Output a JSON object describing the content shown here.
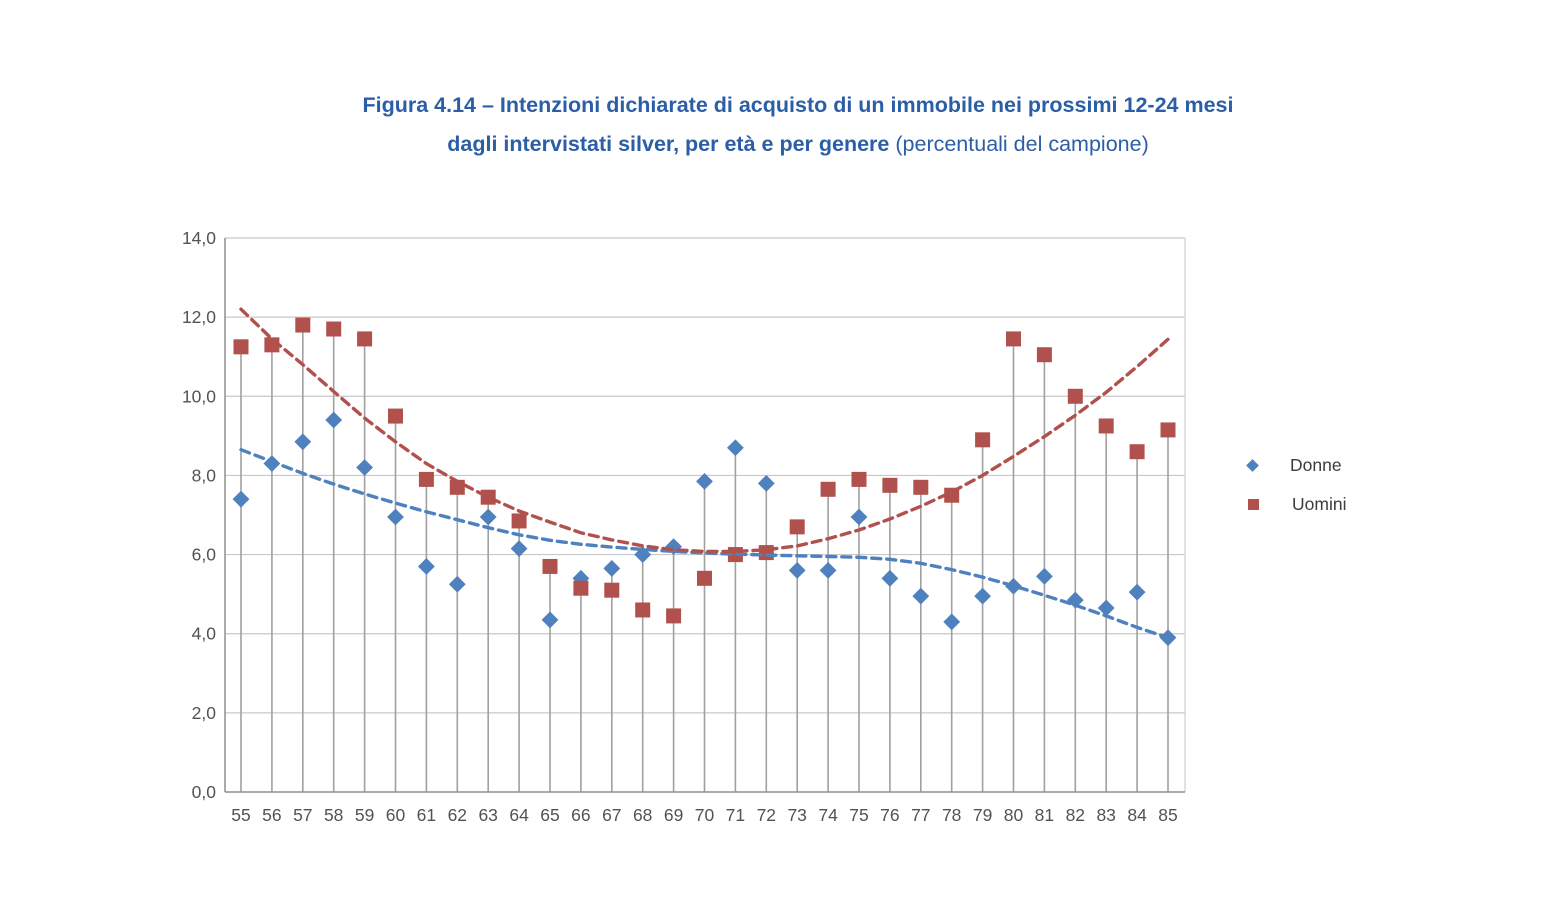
{
  "title": {
    "line1": "Figura 4.14 – Intenzioni dichiarate di acquisto di un immobile nei prossimi 12-24 mesi",
    "line2_bold": "dagli intervistati silver, per età e per genere",
    "line2_normal": " (percentuali del campione)",
    "color": "#2B5EA7"
  },
  "legend": {
    "position": "right",
    "items": [
      {
        "label": "Donne",
        "marker": "diamond",
        "color": "#4E81BD"
      },
      {
        "label": "Uomini",
        "marker": "square",
        "color": "#B1514D"
      }
    ]
  },
  "axes": {
    "y_ticks": [
      0,
      2,
      4,
      6,
      8,
      10,
      12,
      14
    ],
    "y_tick_labels": [
      "0,0",
      "2,0",
      "4,0",
      "6,0",
      "8,0",
      "10,0",
      "12,0",
      "14,0"
    ],
    "x_labels": [
      "55",
      "56",
      "57",
      "58",
      "59",
      "60",
      "61",
      "62",
      "63",
      "64",
      "65",
      "66",
      "67",
      "68",
      "69",
      "70",
      "71",
      "72",
      "73",
      "74",
      "75",
      "76",
      "77",
      "78",
      "79",
      "80",
      "81",
      "82",
      "83",
      "84",
      "85"
    ]
  },
  "chart_data": {
    "type": "scatter",
    "x": [
      55,
      56,
      57,
      58,
      59,
      60,
      61,
      62,
      63,
      64,
      65,
      66,
      67,
      68,
      69,
      70,
      71,
      72,
      73,
      74,
      75,
      76,
      77,
      78,
      79,
      80,
      81,
      82,
      83,
      84,
      85
    ],
    "xlabel": "",
    "ylabel": "",
    "ylim": [
      0,
      14
    ],
    "ytick_step": 2,
    "grid": "horizontal",
    "drop_lines": true,
    "legend_position": "right",
    "series": [
      {
        "name": "Donne",
        "marker": "diamond",
        "color": "#4E81BD",
        "values": [
          7.4,
          8.3,
          8.85,
          9.4,
          8.2,
          6.95,
          5.7,
          5.25,
          6.95,
          6.15,
          4.35,
          5.4,
          5.65,
          6.0,
          6.2,
          7.85,
          8.7,
          7.8,
          5.6,
          5.6,
          6.95,
          5.4,
          4.95,
          4.3,
          4.95,
          5.2,
          5.45,
          4.85,
          4.65,
          5.05,
          3.9
        ],
        "trendline": [
          8.65,
          8.35,
          8.05,
          7.78,
          7.53,
          7.3,
          7.08,
          6.88,
          6.68,
          6.5,
          6.36,
          6.26,
          6.19,
          6.13,
          6.08,
          6.04,
          6.01,
          5.99,
          5.97,
          5.95,
          5.93,
          5.88,
          5.78,
          5.62,
          5.43,
          5.21,
          4.97,
          4.72,
          4.45,
          4.16,
          3.9
        ]
      },
      {
        "name": "Uomini",
        "marker": "square",
        "color": "#B1514D",
        "values": [
          11.25,
          11.3,
          11.8,
          11.7,
          11.45,
          9.5,
          7.9,
          7.7,
          7.45,
          6.85,
          5.7,
          5.15,
          5.1,
          4.6,
          4.45,
          5.4,
          6.0,
          6.05,
          6.7,
          7.65,
          7.9,
          7.75,
          7.7,
          7.5,
          8.9,
          11.45,
          11.05,
          10.0,
          9.25,
          8.6,
          9.15
        ],
        "trendline": [
          12.2,
          11.45,
          10.8,
          10.12,
          9.45,
          8.85,
          8.3,
          7.85,
          7.45,
          7.1,
          6.82,
          6.55,
          6.37,
          6.22,
          6.12,
          6.08,
          6.08,
          6.12,
          6.22,
          6.4,
          6.62,
          6.9,
          7.22,
          7.58,
          8.0,
          8.48,
          8.98,
          9.52,
          10.1,
          10.75,
          11.44
        ]
      }
    ],
    "style": {
      "grid_color": "#C8C8C8",
      "stem_color": "#A0A0A0",
      "axis_color": "#8F8F8F",
      "tick_label_color": "#525252",
      "plot_border_color": "#CFCFCF"
    }
  }
}
